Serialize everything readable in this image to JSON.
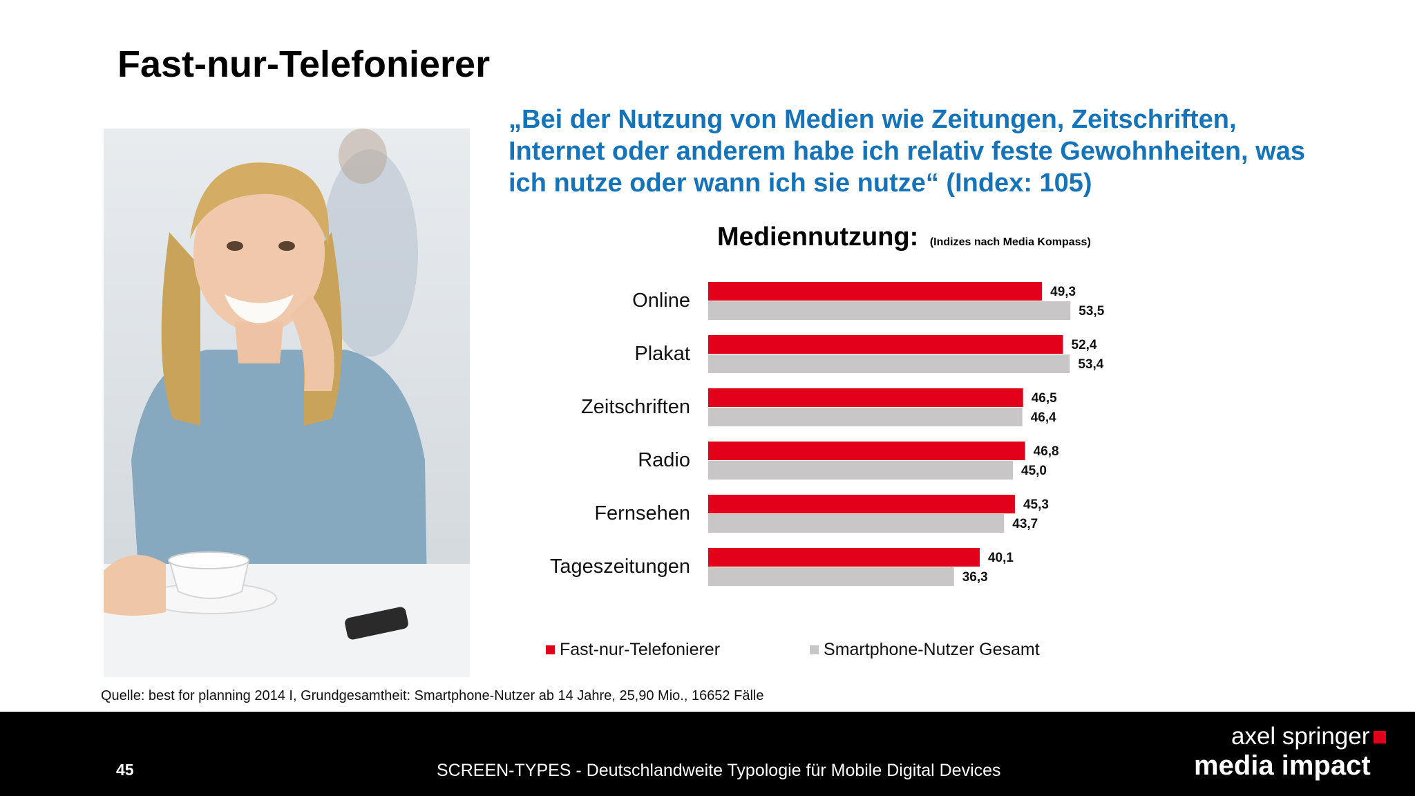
{
  "slide": {
    "title": "Fast-nur-Telefonierer",
    "quote": "„Bei der Nutzung von Medien wie Zeitungen, Zeitschriften, Internet oder anderem habe ich relativ feste Gewohnheiten, was ich nutze oder wann ich sie nutze“ (Index: 105)",
    "source": "Quelle: best for planning 2014 I, Grundgesamtheit: Smartphone-Nutzer ab 14 Jahre, 25,90 Mio., 16652 Fälle",
    "page_number": "45",
    "footer_text": "SCREEN-TYPES - Deutschlandweite Typologie für Mobile Digital Devices",
    "brand_line1": "axel springer",
    "brand_line2": "media impact"
  },
  "colors": {
    "quote": "#1574b9",
    "series_red": "#e2001a",
    "series_grey": "#c8c6c7",
    "footer_bg": "#000000",
    "brand_square": "#e2001a"
  },
  "chart_data": {
    "type": "bar",
    "orientation": "horizontal",
    "title": "Mediennutzung:",
    "subtitle": "(Indizes nach Media Kompass)",
    "categories": [
      "Online",
      "Plakat",
      "Zeitschriften",
      "Radio",
      "Fernsehen",
      "Tageszeitungen"
    ],
    "series": [
      {
        "name": "Fast-nur-Telefonierer",
        "color": "#e2001a",
        "values": [
          49.3,
          52.4,
          46.5,
          46.8,
          45.3,
          40.1
        ],
        "labels": [
          "49,3",
          "52,4",
          "46,5",
          "46,8",
          "45,3",
          "40,1"
        ]
      },
      {
        "name": "Smartphone-Nutzer Gesamt",
        "color": "#c8c6c7",
        "values": [
          53.5,
          53.4,
          46.4,
          45.0,
          43.7,
          36.3
        ],
        "labels": [
          "53,5",
          "53,4",
          "46,4",
          "45,0",
          "43,7",
          "36,3"
        ]
      }
    ],
    "xlim": [
      0,
      60
    ],
    "grid": false,
    "legend_position": "bottom"
  }
}
